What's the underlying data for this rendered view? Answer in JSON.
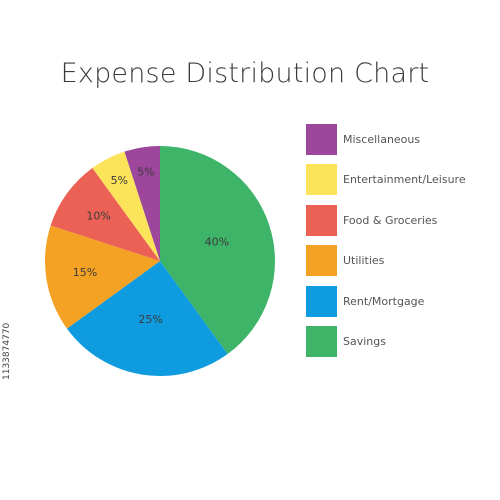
{
  "chart_data": {
    "type": "pie",
    "title": "Expense Distribution Chart",
    "slices": [
      {
        "label": "Savings",
        "value": 40,
        "value_label": "40%",
        "color": "#3db468"
      },
      {
        "label": "Rent/Mortgage",
        "value": 25,
        "value_label": "25%",
        "color": "#0f9be0"
      },
      {
        "label": "Utilities",
        "value": 15,
        "value_label": "15%",
        "color": "#f4a223"
      },
      {
        "label": "Food & Groceries",
        "value": 10,
        "value_label": "10%",
        "color": "#ec6156"
      },
      {
        "label": "Entertainment/Leisure",
        "value": 5,
        "value_label": "5%",
        "color": "#fbe35a"
      },
      {
        "label": "Miscellaneous",
        "value": 5,
        "value_label": "5%",
        "color": "#9c479c"
      }
    ],
    "legend": {
      "placement": "right",
      "entries": [
        {
          "label": "Miscellaneous",
          "color": "#9c479c"
        },
        {
          "label": "Entertainment/Leisure",
          "color": "#fbe35a"
        },
        {
          "label": "Food & Groceries",
          "color": "#ec6156"
        },
        {
          "label": "Utilities",
          "color": "#f4a223"
        },
        {
          "label": "Rent/Mortgage",
          "color": "#0f9be0"
        },
        {
          "label": "Savings",
          "color": "#3db468"
        }
      ]
    }
  },
  "watermark_id": "1133874770"
}
